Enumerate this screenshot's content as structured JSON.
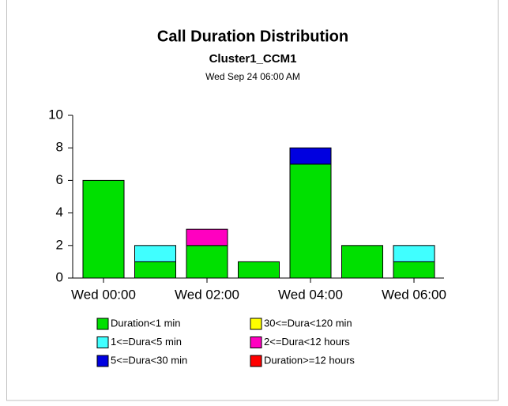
{
  "chart_data": {
    "type": "bar",
    "stacked": true,
    "title": "Call Duration Distribution",
    "subtitle": "Cluster1_CCM1",
    "annotation": "Wed Sep 24 06:00 AM",
    "categories": [
      "Wed 00:00",
      null,
      "Wed 02:00",
      null,
      "Wed 04:00",
      null,
      "Wed 06:00"
    ],
    "series": [
      {
        "name": "Duration<1 min",
        "color": "#00e000",
        "values": [
          6,
          1,
          2,
          1,
          7,
          2,
          1
        ]
      },
      {
        "name": "1<=Dura<5 min",
        "color": "#40ffff",
        "values": [
          0,
          1,
          0,
          0,
          0,
          0,
          1
        ]
      },
      {
        "name": "5<=Dura<30 min",
        "color": "#0000e0",
        "values": [
          0,
          0,
          0,
          0,
          1,
          0,
          0
        ]
      },
      {
        "name": "30<=Dura<120 min",
        "color": "#ffff00",
        "values": [
          0,
          0,
          0,
          0,
          0,
          0,
          0
        ]
      },
      {
        "name": "2<=Dura<12 hours",
        "color": "#ff00c0",
        "values": [
          0,
          0,
          1,
          0,
          0,
          0,
          0
        ]
      },
      {
        "name": "Duration>=12 hours",
        "color": "#ff0000",
        "values": [
          0,
          0,
          0,
          0,
          0,
          0,
          0
        ]
      }
    ],
    "ylim": [
      0,
      10
    ],
    "yticks": [
      0,
      2,
      4,
      6,
      8,
      10
    ],
    "legend": "bottom"
  }
}
